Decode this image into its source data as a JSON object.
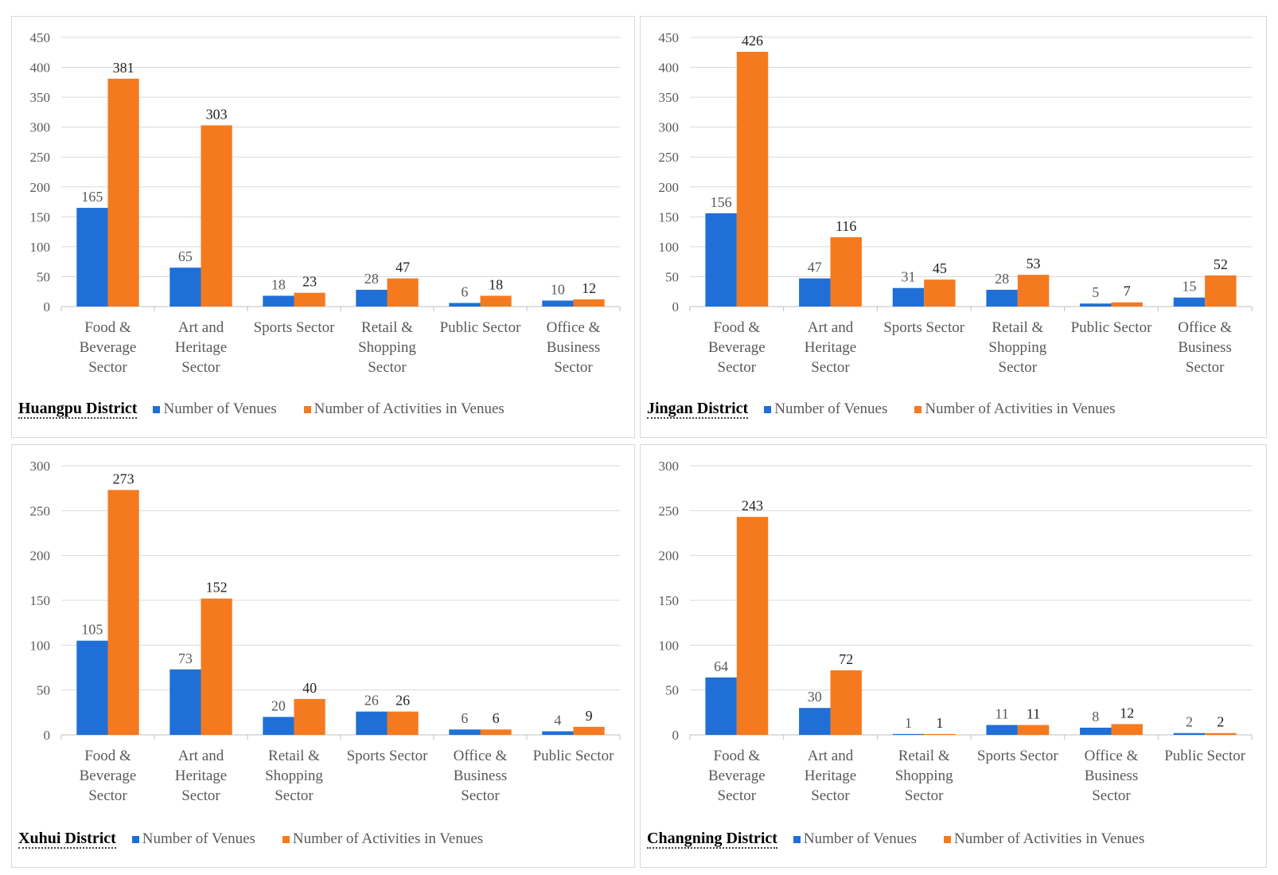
{
  "colors": {
    "venues": "#1f6fd6",
    "activities": "#f57a1f",
    "grid": "#d9d9d9",
    "axis": "#bfbfbf",
    "text": "#595959"
  },
  "legend": {
    "venues": "Number of Venues",
    "activities": "Number of Activities in Venues"
  },
  "chart_data": [
    {
      "type": "bar",
      "title": "Huangpu District",
      "categories": [
        "Food & Beverage Sector",
        "Art and Heritage Sector",
        "Sports Sector",
        "Retail & Shopping Sector",
        "Public Sector",
        "Office & Business Sector"
      ],
      "category_lines": [
        [
          "Food &",
          "Beverage",
          "Sector"
        ],
        [
          "Art and",
          "Heritage",
          "Sector"
        ],
        [
          "Sports Sector"
        ],
        [
          "Retail &",
          "Shopping",
          "Sector"
        ],
        [
          "Public Sector"
        ],
        [
          "Office &",
          "Business",
          "Sector"
        ]
      ],
      "series": [
        {
          "name": "Number of Venues",
          "values": [
            165,
            65,
            18,
            28,
            6,
            10
          ]
        },
        {
          "name": "Number of Activities in Venues",
          "values": [
            381,
            303,
            23,
            47,
            18,
            12
          ]
        }
      ],
      "ylim": [
        0,
        450
      ],
      "yticks": [
        0,
        50,
        100,
        150,
        200,
        250,
        300,
        350,
        400,
        450
      ],
      "grid": true,
      "legend_position": "bottom"
    },
    {
      "type": "bar",
      "title": "Jingan District",
      "categories": [
        "Food & Beverage Sector",
        "Art and Heritage Sector",
        "Sports Sector",
        "Retail & Shopping Sector",
        "Public Sector",
        "Office & Business Sector"
      ],
      "category_lines": [
        [
          "Food &",
          "Beverage",
          "Sector"
        ],
        [
          "Art and",
          "Heritage",
          "Sector"
        ],
        [
          "Sports Sector"
        ],
        [
          "Retail &",
          "Shopping",
          "Sector"
        ],
        [
          "Public Sector"
        ],
        [
          "Office &",
          "Business",
          "Sector"
        ]
      ],
      "series": [
        {
          "name": "Number of Venues",
          "values": [
            156,
            47,
            31,
            28,
            5,
            15
          ]
        },
        {
          "name": "Number of Activities in Venues",
          "values": [
            426,
            116,
            45,
            53,
            7,
            52
          ]
        }
      ],
      "ylim": [
        0,
        450
      ],
      "yticks": [
        0,
        50,
        100,
        150,
        200,
        250,
        300,
        350,
        400,
        450
      ],
      "grid": true,
      "legend_position": "bottom"
    },
    {
      "type": "bar",
      "title": "Xuhui District",
      "categories": [
        "Food & Beverage Sector",
        "Art and Heritage Sector",
        "Retail & Shopping Sector",
        "Sports Sector",
        "Office & Business Sector",
        "Public Sector"
      ],
      "category_lines": [
        [
          "Food &",
          "Beverage",
          "Sector"
        ],
        [
          "Art and",
          "Heritage",
          "Sector"
        ],
        [
          "Retail &",
          "Shopping",
          "Sector"
        ],
        [
          "Sports Sector"
        ],
        [
          "Office &",
          "Business",
          "Sector"
        ],
        [
          "Public Sector"
        ]
      ],
      "series": [
        {
          "name": "Number of Venues",
          "values": [
            105,
            73,
            20,
            26,
            6,
            4
          ]
        },
        {
          "name": "Number of Activities in Venues",
          "values": [
            273,
            152,
            40,
            26,
            6,
            9
          ]
        }
      ],
      "ylim": [
        0,
        300
      ],
      "yticks": [
        0,
        50,
        100,
        150,
        200,
        250,
        300
      ],
      "grid": true,
      "legend_position": "bottom"
    },
    {
      "type": "bar",
      "title": "Changning District",
      "categories": [
        "Food & Beverage Sector",
        "Art and Heritage Sector",
        "Retail & Shopping Sector",
        "Sports Sector",
        "Office & Business Sector",
        "Public Sector"
      ],
      "category_lines": [
        [
          "Food &",
          "Beverage",
          "Sector"
        ],
        [
          "Art and",
          "Heritage",
          "Sector"
        ],
        [
          "Retail &",
          "Shopping",
          "Sector"
        ],
        [
          "Sports Sector"
        ],
        [
          "Office &",
          "Business",
          "Sector"
        ],
        [
          "Public Sector"
        ]
      ],
      "series": [
        {
          "name": "Number of Venues",
          "values": [
            64,
            30,
            1,
            11,
            8,
            2
          ]
        },
        {
          "name": "Number of Activities in Venues",
          "values": [
            243,
            72,
            1,
            11,
            12,
            2
          ]
        }
      ],
      "ylim": [
        0,
        300
      ],
      "yticks": [
        0,
        50,
        100,
        150,
        200,
        250,
        300
      ],
      "grid": true,
      "legend_position": "bottom"
    }
  ]
}
